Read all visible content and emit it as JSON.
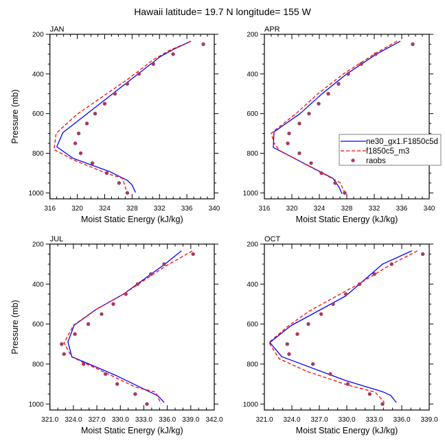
{
  "figure": {
    "title": "Hawaii  latitude= 19.7 N longitude= 155 W"
  },
  "legend": {
    "entries": [
      {
        "label": "ne30_gx1.F1850c5d",
        "style": "solid",
        "color": "#0000ff"
      },
      {
        "label": "f1850c5_m3",
        "style": "dashed",
        "color": "#ff0000"
      },
      {
        "label": "raobs",
        "style": "marker",
        "color": "#a63a63"
      }
    ]
  },
  "colors": {
    "model1": "#0000ff",
    "model2": "#ff0000",
    "obs": "#a63a63"
  },
  "chart_data": [
    {
      "type": "line",
      "panel": "JAN",
      "xlabel": "Moist Static Energy (kJ/kg)",
      "ylabel": "Pressure (mb)",
      "xlim": [
        316,
        340
      ],
      "ylim": [
        1030,
        200
      ],
      "y_inverted": true,
      "xticks": [
        316,
        320,
        324,
        328,
        332,
        336,
        340
      ],
      "xtick_labels": [
        "316",
        "320",
        "324",
        "328",
        "332",
        "336",
        "340"
      ],
      "yticks": [
        200,
        400,
        600,
        800,
        1000
      ],
      "ytick_labels": [
        "200",
        "400",
        "600",
        "800",
        "1000"
      ],
      "series": [
        {
          "name": "ne30_gx1.F1850c5d",
          "style": "solid",
          "p": [
            235,
            275,
            313,
            696,
            767,
            826,
            892,
            937,
            960,
            998
          ],
          "x": [
            336.6,
            334.1,
            332.1,
            317.9,
            317.0,
            319.4,
            324.7,
            327.3,
            328.0,
            328.5
          ]
        },
        {
          "name": "f1850c5_m3",
          "style": "dashed",
          "p": [
            235,
            282,
            328,
            426,
            605,
            700,
            782,
            836,
            903,
            926,
            1005
          ],
          "x": [
            336.6,
            333.4,
            331.1,
            327.4,
            319.9,
            316.9,
            316.6,
            319.6,
            324.4,
            326.6,
            327.3
          ]
        },
        {
          "name": "raobs",
          "style": "marker",
          "p": [
            250,
            300,
            350,
            400,
            450,
            500,
            550,
            600,
            650,
            700,
            750,
            800,
            850,
            900,
            950,
            1000
          ],
          "x": [
            338.4,
            334.0,
            331.1,
            329.0,
            327.3,
            325.5,
            324.0,
            322.6,
            321.4,
            320.2,
            319.7,
            320.5,
            322.2,
            324.3,
            326.1,
            327.3
          ]
        }
      ]
    },
    {
      "type": "line",
      "panel": "APR",
      "xlabel": "Moist Static Energy (kJ/kg)",
      "ylabel": "",
      "xlim": [
        316,
        340
      ],
      "ylim": [
        1030,
        200
      ],
      "y_inverted": true,
      "xticks": [
        316,
        320,
        324,
        328,
        332,
        336,
        340
      ],
      "xtick_labels": [
        "316",
        "320",
        "324",
        "328",
        "332",
        "336",
        "340"
      ],
      "yticks": [
        200,
        400,
        600,
        800,
        1000
      ],
      "ytick_labels": [
        "200",
        "400",
        "600",
        "800",
        "1000"
      ],
      "series": [
        {
          "name": "ne30_gx1.F1850c5d",
          "style": "solid",
          "p": [
            235,
            300,
            400,
            500,
            600,
            692,
            771,
            927,
            973,
            1005
          ],
          "x": [
            335.8,
            332.3,
            328.0,
            324.4,
            321.2,
            317.4,
            317.3,
            326.0,
            326.9,
            327.3
          ]
        },
        {
          "name": "f1850c5_m3",
          "style": "dashed",
          "p": [
            235,
            300,
            400,
            500,
            600,
            699,
            749,
            786,
            948,
            998
          ],
          "x": [
            335.3,
            332.0,
            327.5,
            323.8,
            320.6,
            317.0,
            317.4,
            318.2,
            327.0,
            327.7
          ]
        },
        {
          "name": "raobs",
          "style": "marker",
          "p": [
            250,
            300,
            350,
            400,
            450,
            500,
            550,
            600,
            650,
            700,
            750,
            800,
            850,
            900,
            950,
            1000
          ],
          "x": [
            337.6,
            332.2,
            330.1,
            328.2,
            326.8,
            325.3,
            323.9,
            322.5,
            321.1,
            319.6,
            319.4,
            321.1,
            322.8,
            324.3,
            326.3,
            327.7
          ]
        }
      ]
    },
    {
      "type": "line",
      "panel": "JUL",
      "xlabel": "Moist Static Energy (kJ/kg)",
      "ylabel": "Pressure (mb)",
      "xlim": [
        321,
        342
      ],
      "ylim": [
        1030,
        200
      ],
      "y_inverted": true,
      "xticks": [
        321,
        324,
        327,
        330,
        333,
        336,
        339,
        342
      ],
      "xtick_labels": [
        "321.0",
        "324.0",
        "327.0",
        "330.0",
        "333.0",
        "336.0",
        "339.0",
        "342.0"
      ],
      "yticks": [
        200,
        400,
        600,
        800,
        1000
      ],
      "ytick_labels": [
        "200",
        "400",
        "600",
        "800",
        "1000"
      ],
      "series": [
        {
          "name": "ne30_gx1.F1850c5d",
          "style": "solid",
          "p": [
            234,
            300,
            450,
            527,
            606,
            689,
            763,
            858,
            959,
            992
          ],
          "x": [
            337.8,
            335.7,
            330.4,
            326.9,
            324.1,
            323.3,
            323.8,
            329.5,
            334.8,
            335.6
          ]
        },
        {
          "name": "f1850c5_m3",
          "style": "dashed",
          "p": [
            234,
            312,
            450,
            527,
            606,
            695,
            765,
            858,
            915,
            940,
            998
          ],
          "x": [
            339.2,
            335.7,
            330.4,
            326.9,
            324.0,
            322.8,
            323.8,
            328.9,
            331.9,
            334.5,
            335.2
          ]
        },
        {
          "name": "raobs",
          "style": "marker",
          "p": [
            250,
            300,
            350,
            400,
            450,
            500,
            550,
            600,
            650,
            700,
            750,
            800,
            850,
            900,
            950,
            1000
          ],
          "x": [
            339.3,
            335.6,
            333.9,
            332.2,
            330.7,
            329.1,
            327.6,
            325.9,
            324.2,
            322.5,
            322.8,
            325.3,
            328.1,
            329.6,
            331.9,
            333.4
          ]
        }
      ]
    },
    {
      "type": "line",
      "panel": "OCT",
      "xlabel": "Moist Static Energy (kJ/kg)",
      "ylabel": "",
      "xlim": [
        321,
        339
      ],
      "ylim": [
        1030,
        200
      ],
      "y_inverted": true,
      "xticks": [
        321,
        324,
        327,
        330,
        333,
        336,
        339
      ],
      "xtick_labels": [
        "321.0",
        "324.0",
        "327.0",
        "330.0",
        "333.0",
        "336.0",
        "339.0"
      ],
      "yticks": [
        200,
        400,
        600,
        800,
        1000
      ],
      "ytick_labels": [
        "200",
        "400",
        "600",
        "800",
        "1000"
      ],
      "series": [
        {
          "name": "ne30_gx1.F1850c5d",
          "style": "solid",
          "p": [
            234,
            300,
            459,
            608,
            692,
            763,
            883,
            938,
            957,
            992
          ],
          "x": [
            337.1,
            333.9,
            329.9,
            323.9,
            321.6,
            322.9,
            329.9,
            333.9,
            334.8,
            335.4
          ]
        },
        {
          "name": "f1850c5_m3",
          "style": "dashed",
          "p": [
            234,
            300,
            397,
            535,
            610,
            692,
            773,
            836,
            905,
            940,
            992
          ],
          "x": [
            337.7,
            334.9,
            331.4,
            325.9,
            323.6,
            321.5,
            322.6,
            325.6,
            330.1,
            333.1,
            334.1
          ]
        },
        {
          "name": "raobs",
          "style": "marker",
          "p": [
            250,
            300,
            350,
            400,
            450,
            500,
            550,
            600,
            650,
            700,
            750,
            800,
            850,
            900,
            950,
            1000
          ],
          "x": [
            338.3,
            334.9,
            333.0,
            331.4,
            329.9,
            328.5,
            327.2,
            325.8,
            324.6,
            323.5,
            323.7,
            326.3,
            328.2,
            330.1,
            332.5,
            333.9
          ]
        }
      ]
    }
  ]
}
